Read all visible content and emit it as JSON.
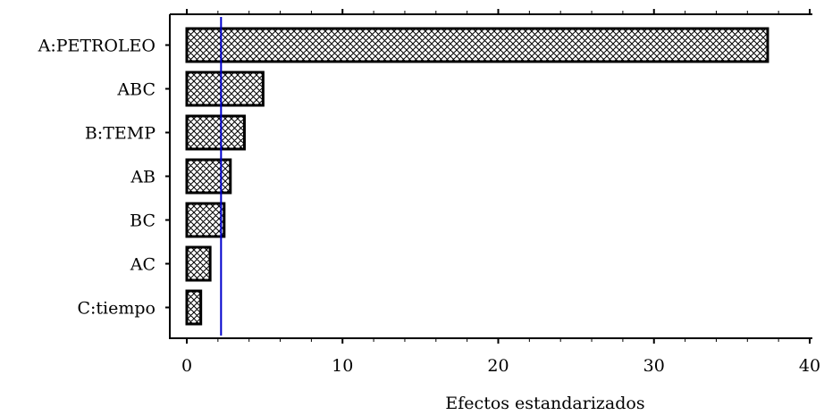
{
  "chart_data": {
    "type": "bar",
    "orientation": "horizontal",
    "categories": [
      "A:PETROLEO",
      "ABC",
      "B:TEMP",
      "AB",
      "BC",
      "AC",
      "C:tiempo"
    ],
    "values": [
      37.3,
      4.9,
      3.7,
      2.8,
      2.4,
      1.5,
      0.9
    ],
    "xlabel": "Efectos estandarizados",
    "ylabel": "",
    "xlim": [
      0,
      40
    ],
    "xticks": [
      "0",
      "10",
      "20",
      "30",
      "40"
    ],
    "reference_line": 2.2,
    "bar_fill": "cross-hatch",
    "colors": {
      "bar_fill": "#ffffff",
      "bar_stroke": "#000000",
      "hatch": "#000000",
      "reference_line": "#0000cc",
      "axis": "#000000"
    },
    "grid": false,
    "legend": "none"
  }
}
